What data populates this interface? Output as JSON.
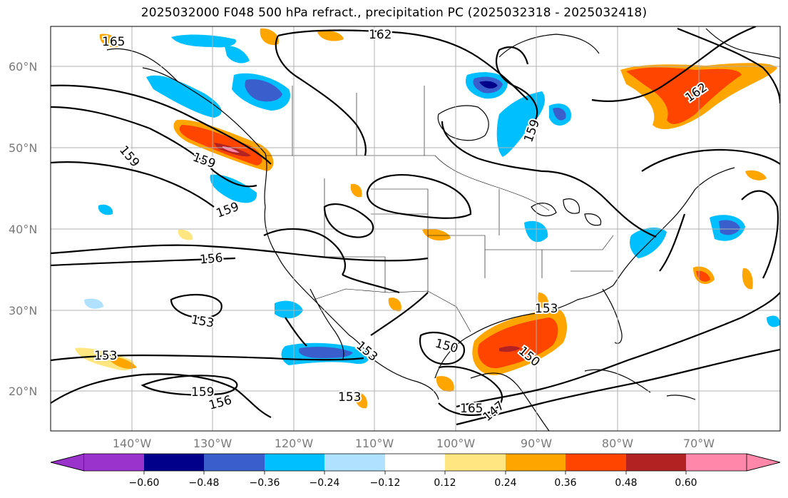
{
  "title": "2025032000 F048 500 hPa refract., precipitation PC (2025032318 - 2025032418)",
  "lat_labels": [
    "60°N",
    "50°N",
    "40°N",
    "30°N",
    "20°N"
  ],
  "lon_labels": [
    "140°W",
    "130°W",
    "120°W",
    "110°W",
    "100°W",
    "90°W",
    "80°W",
    "70°W"
  ],
  "colorbar": {
    "ticks": [
      "−0.60",
      "−0.48",
      "−0.36",
      "−0.24",
      "−0.12",
      "0.12",
      "0.24",
      "0.36",
      "0.48",
      "0.60"
    ],
    "colors": [
      "#9933cc",
      "#00008b",
      "#3a5fcd",
      "#00bfff",
      "#b0e2ff",
      "#ffffff",
      "#ffe680",
      "#ffa500",
      "#ff4500",
      "#b22222",
      "#ff88aa"
    ]
  },
  "contour_labels": {
    "c165": "165",
    "c162_top": "162",
    "c165b": "165",
    "c162_right": "162",
    "c159_a": "159",
    "c159_b": "159",
    "c159_c": "159",
    "c159_d": "159",
    "c156_a": "156",
    "c156_b": "156",
    "c153_a": "153",
    "c153_b": "153",
    "c153_c": "153",
    "c153_d": "153",
    "c153_e": "153",
    "c150_a": "150",
    "c150_b": "150",
    "c147": "147",
    "c159_e": "159"
  },
  "colors": {
    "contour": "#000000",
    "grid": "#b0b0b0",
    "land": "#000000"
  }
}
